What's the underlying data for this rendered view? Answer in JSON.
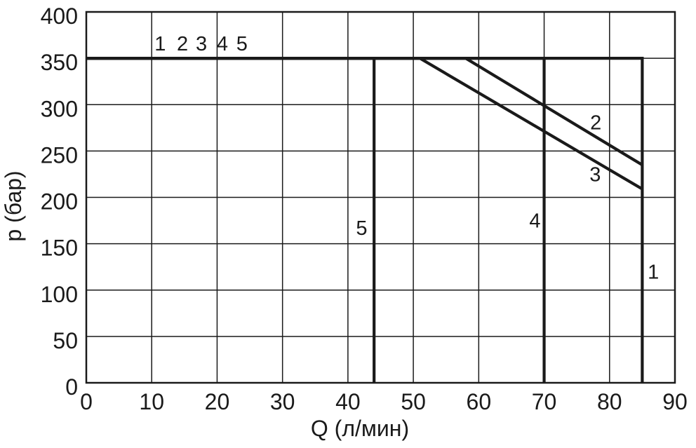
{
  "page": {
    "background": "#ffffff"
  },
  "chart_data": {
    "type": "line",
    "title": "",
    "xlabel": "Q (л/мин)",
    "ylabel": "p (бар)",
    "xlim": [
      0,
      90
    ],
    "ylim": [
      0,
      400
    ],
    "xticks": [
      0,
      10,
      20,
      30,
      40,
      50,
      60,
      70,
      80,
      90
    ],
    "yticks": [
      0,
      50,
      100,
      150,
      200,
      250,
      300,
      350,
      400
    ],
    "grid": true,
    "legend_position": "none",
    "background": "#ffffff",
    "line_color": "#1a1a1a",
    "grid_color": "#1a1a1a",
    "series": [
      {
        "name": "1",
        "points": [
          [
            0,
            350
          ],
          [
            85,
            350
          ],
          [
            85,
            0
          ]
        ]
      },
      {
        "name": "2",
        "points": [
          [
            0,
            350
          ],
          [
            58,
            350
          ],
          [
            85,
            235
          ]
        ]
      },
      {
        "name": "3",
        "points": [
          [
            0,
            350
          ],
          [
            51,
            350
          ],
          [
            85,
            209
          ]
        ]
      },
      {
        "name": "4",
        "points": [
          [
            0,
            350
          ],
          [
            70,
            350
          ],
          [
            70,
            0
          ]
        ]
      },
      {
        "name": "5",
        "points": [
          [
            0,
            350
          ],
          [
            44,
            350
          ],
          [
            44,
            0
          ]
        ]
      }
    ],
    "annotations": [
      {
        "text": "1",
        "q": 11.3,
        "p": 366,
        "name": "curve-index-label-1"
      },
      {
        "text": "2",
        "q": 14.7,
        "p": 366,
        "name": "curve-index-label-2"
      },
      {
        "text": "3",
        "q": 17.6,
        "p": 366,
        "name": "curve-index-label-3"
      },
      {
        "text": "4",
        "q": 20.8,
        "p": 366,
        "name": "curve-index-label-4"
      },
      {
        "text": "5",
        "q": 23.8,
        "p": 366,
        "name": "curve-index-label-5"
      },
      {
        "text": "5",
        "q": 42.1,
        "p": 167,
        "name": "curve-5-label"
      },
      {
        "text": "4",
        "q": 68.6,
        "p": 175,
        "name": "curve-4-label"
      },
      {
        "text": "2",
        "q": 77.9,
        "p": 281,
        "name": "curve-2-label"
      },
      {
        "text": "3",
        "q": 77.8,
        "p": 225,
        "name": "curve-3-label"
      },
      {
        "text": "1",
        "q": 86.7,
        "p": 120,
        "name": "curve-1-label"
      }
    ]
  }
}
